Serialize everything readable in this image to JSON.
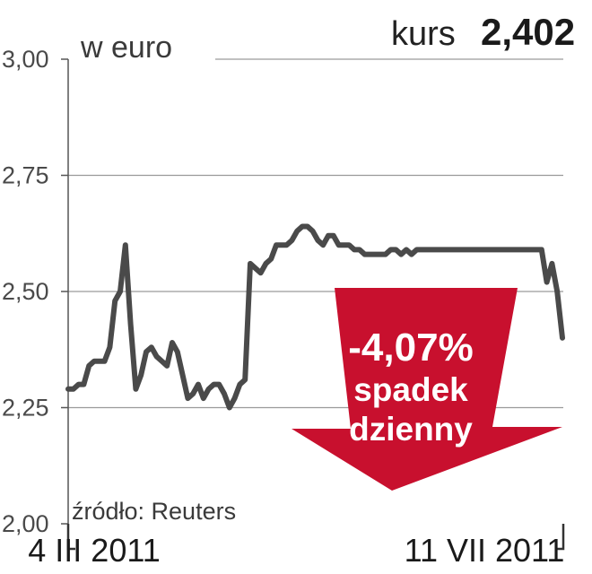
{
  "header": {
    "unit": "w euro",
    "kurs_label": "kurs",
    "kurs_value": "2,402"
  },
  "badge": {
    "change": "-4,07%",
    "line1": "spadek",
    "line2": "dzienny",
    "color": "#c8102e"
  },
  "source": "źródło: Reuters",
  "chart_data": {
    "type": "line",
    "title": "",
    "xlabel": "",
    "ylabel": "w euro",
    "ylim": [
      2.0,
      3.0
    ],
    "y_ticks": [
      {
        "value": 2.0,
        "label": "2,00"
      },
      {
        "value": 2.25,
        "label": "2,25"
      },
      {
        "value": 2.5,
        "label": "2,50"
      },
      {
        "value": 2.75,
        "label": "2,75"
      },
      {
        "value": 3.0,
        "label": "3,00"
      }
    ],
    "x_labels": [
      {
        "index": 5,
        "label": "4 III 2011"
      },
      {
        "index": 80,
        "label": "11 VII 2011"
      }
    ],
    "grid": true,
    "line_color": "#4a4a4a",
    "series": [
      {
        "values": [
          2.29,
          2.29,
          2.3,
          2.3,
          2.34,
          2.35,
          2.35,
          2.35,
          2.38,
          2.48,
          2.5,
          2.6,
          2.43,
          2.29,
          2.32,
          2.37,
          2.38,
          2.36,
          2.35,
          2.34,
          2.39,
          2.37,
          2.32,
          2.27,
          2.28,
          2.3,
          2.27,
          2.29,
          2.3,
          2.3,
          2.28,
          2.25,
          2.27,
          2.3,
          2.31,
          2.56,
          2.55,
          2.54,
          2.56,
          2.57,
          2.6,
          2.6,
          2.6,
          2.61,
          2.63,
          2.64,
          2.64,
          2.63,
          2.61,
          2.6,
          2.62,
          2.62,
          2.6,
          2.6,
          2.6,
          2.59,
          2.59,
          2.58,
          2.58,
          2.58,
          2.58,
          2.58,
          2.59,
          2.59,
          2.58,
          2.59,
          2.58,
          2.59,
          2.59,
          2.59,
          2.59,
          2.59,
          2.59,
          2.59,
          2.59,
          2.59,
          2.59,
          2.59,
          2.59,
          2.59,
          2.59,
          2.59,
          2.59,
          2.59,
          2.59,
          2.59,
          2.59,
          2.59,
          2.59,
          2.59,
          2.59,
          2.59,
          2.52,
          2.56,
          2.5,
          2.4
        ]
      }
    ]
  }
}
